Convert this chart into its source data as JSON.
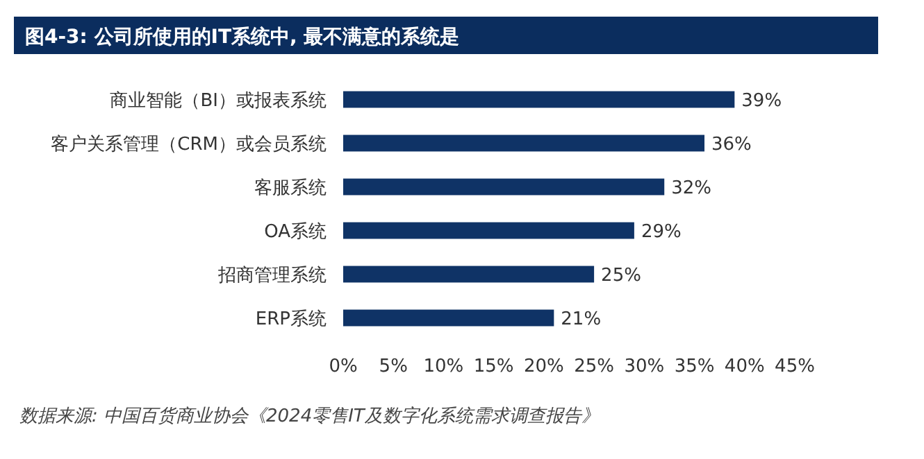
{
  "chart_data": {
    "type": "bar",
    "orientation": "horizontal",
    "title": "图4-3: 公司所使用的IT系统中, 最不满意的系统是",
    "categories": [
      "商业智能（BI）或报表系统",
      "客户关系管理（CRM）或会员系统",
      "客服系统",
      "OA系统",
      "招商管理系统",
      "ERP系统"
    ],
    "values": [
      39,
      36,
      32,
      29,
      25,
      21
    ],
    "color": "#0f3366",
    "value_labels": [
      "39%",
      "36%",
      "32%",
      "29%",
      "25%",
      "21%"
    ],
    "xlim": [
      0,
      45
    ],
    "xticks": [
      {
        "value": 0,
        "label": "0%"
      },
      {
        "value": 5,
        "label": "5%"
      },
      {
        "value": 10,
        "label": "10%"
      },
      {
        "value": 15,
        "label": "15%"
      },
      {
        "value": 20,
        "label": "20%"
      },
      {
        "value": 25,
        "label": "25%"
      },
      {
        "value": 30,
        "label": "30%"
      },
      {
        "value": 35,
        "label": "35%"
      },
      {
        "value": 40,
        "label": "40%"
      },
      {
        "value": 45,
        "label": "45%"
      }
    ],
    "grid": false,
    "annotations": [
      "数据来源: 中国百货商业协会《2024零售IT及数字化系统需求调查报告》"
    ]
  }
}
